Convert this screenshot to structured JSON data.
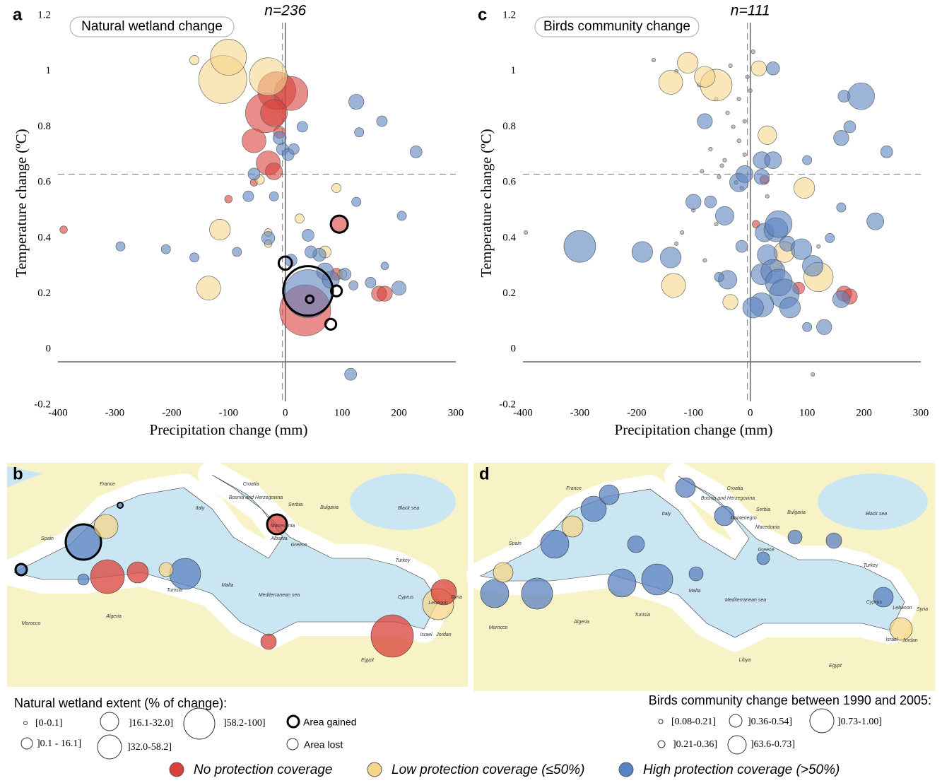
{
  "chart_data": [
    {
      "type": "scatter",
      "panel": "a",
      "title": "Natural wetland change",
      "annotation": "n=236",
      "xlabel": "Precipitation change (mm)",
      "ylabel": "Temperature change (ºC)",
      "xlim": [
        -400,
        300
      ],
      "xticks": [
        -400,
        -300,
        -200,
        -100,
        0,
        100,
        200,
        300
      ],
      "ylim": [
        -0.2,
        1.2
      ],
      "yticks": [
        -0.2,
        0,
        0.2,
        0.4,
        0.6,
        0.8,
        1,
        1.2
      ],
      "axis_lines": {
        "x": 0,
        "y": -0.045
      },
      "mean_lines": {
        "x": -5,
        "y": 0.63
      },
      "series": [
        {
          "name": "No protection coverage",
          "color": "#d9413a",
          "x": [
            -15,
            10,
            -35,
            -55,
            -30,
            -20,
            -20,
            35,
            165,
            175,
            95,
            -390,
            -55,
            -100,
            90,
            -10
          ],
          "values": [
            0.93,
            0.92,
            0.85,
            0.75,
            0.67,
            0.64,
            0.85,
            0.14,
            0.2,
            0.2,
            0.45,
            0.43,
            0.6,
            0.54,
            0.27,
            0.78
          ],
          "sizes": [
            50,
            40,
            55,
            20,
            20,
            10,
            25,
            90,
            8,
            8,
            8,
            2,
            2,
            2,
            5,
            5
          ]
        },
        {
          "name": "Low protection coverage (≤50%)",
          "color": "#f5d58a",
          "x": [
            -110,
            -30,
            -100,
            -135,
            -115,
            -160,
            -30,
            25,
            100,
            -45,
            90,
            -30,
            70
          ],
          "values": [
            0.97,
            0.98,
            1.05,
            0.22,
            0.43,
            1.04,
            0.42,
            0.47,
            0.27,
            0.61,
            0.58,
            0.38,
            0.35
          ],
          "sizes": [
            80,
            50,
            45,
            20,
            15,
            3,
            2,
            3,
            3,
            3,
            3,
            2,
            5
          ]
        },
        {
          "name": "High protection coverage (>50%)",
          "color": "#5b82c0",
          "x": [
            40,
            125,
            -5,
            5,
            15,
            -55,
            -30,
            40,
            60,
            70,
            80,
            105,
            120,
            150,
            200,
            230,
            205,
            175,
            -10,
            -65,
            -290,
            -210,
            -160,
            -85,
            115,
            130,
            170,
            125,
            10,
            -20,
            45,
            30
          ],
          "values": [
            0.2,
            0.89,
            0.72,
            0.7,
            0.72,
            0.63,
            0.4,
            0.41,
            0.34,
            0.28,
            0.25,
            0.27,
            0.23,
            0.24,
            0.22,
            0.71,
            0.48,
            0.3,
            0.76,
            0.55,
            0.37,
            0.36,
            0.33,
            0.35,
            -0.09,
            0.78,
            0.82,
            0.53,
            0.32,
            0.55,
            0.35,
            0.8
          ],
          "sizes": [
            80,
            8,
            5,
            5,
            4,
            5,
            6,
            5,
            6,
            10,
            10,
            5,
            3,
            4,
            7,
            5,
            3,
            2,
            6,
            4,
            3,
            3,
            3,
            3,
            5,
            3,
            4,
            3,
            5,
            3,
            5,
            4
          ]
        },
        {
          "name": "Area gained",
          "color": "#000000",
          "outline": true,
          "x": [
            40,
            95,
            0,
            90,
            80,
            43
          ],
          "values": [
            0.21,
            0.45,
            0.31,
            0.21,
            0.09,
            0.18
          ],
          "sizes": [
            85,
            10,
            6,
            4,
            4,
            2
          ]
        }
      ]
    },
    {
      "type": "scatter",
      "panel": "c",
      "title": "Birds community change",
      "annotation": "n=111",
      "xlabel": "Precipitation change (mm)",
      "ylabel": "Temperature change (ºC)",
      "xlim": [
        -400,
        300
      ],
      "xticks": [
        -400,
        -300,
        -200,
        -100,
        0,
        100,
        200,
        300
      ],
      "ylim": [
        -0.2,
        1.2
      ],
      "yticks": [
        -0.2,
        0,
        0.2,
        0.4,
        0.6,
        0.8,
        1,
        1.2
      ],
      "axis_lines": {
        "x": 0,
        "y": -0.045
      },
      "mean_lines": {
        "x": -5,
        "y": 0.63
      },
      "series": [
        {
          "color": "#9a9a9a",
          "x": [
            -170,
            -130,
            -90,
            -60,
            -40,
            -30,
            -20,
            -10,
            -5,
            5,
            -50,
            -70,
            -25,
            -15,
            -45,
            -35,
            -85,
            -120,
            -395,
            -20,
            -10,
            30,
            -130,
            -60,
            -80,
            120,
            110,
            -100,
            -55,
            0
          ],
          "values": [
            1.04,
            1.0,
            0.95,
            0.9,
            0.85,
            0.8,
            0.75,
            0.7,
            0.98,
            1.07,
            0.66,
            0.72,
            0.6,
            0.58,
            0.68,
            1.02,
            0.64,
            0.42,
            0.42,
            0.9,
            0.82,
            0.55,
            0.38,
            0.45,
            0.32,
            0.37,
            -0.09,
            0.5,
            0.62,
            0.93
          ],
          "sizes": [
            0.5,
            0.5,
            0.5,
            0.5,
            0.5,
            0.5,
            0.5,
            0.5,
            0.5,
            0.5,
            0.5,
            0.5,
            0.5,
            0.5,
            0.5,
            0.5,
            0.5,
            0.5,
            0.5,
            0.5,
            0.5,
            0.5,
            0.5,
            0.5,
            0.5,
            0.5,
            0.5,
            0.5,
            0.5,
            0.5
          ]
        },
        {
          "color": "#d9413a",
          "x": [
            165,
            175,
            10,
            85,
            25
          ],
          "values": [
            0.2,
            0.19,
            0.45,
            0.22,
            0.61
          ],
          "sizes": [
            8,
            8,
            2,
            5,
            3
          ]
        },
        {
          "color": "#f5d58a",
          "x": [
            -110,
            -140,
            -60,
            -80,
            15,
            30,
            95,
            -135,
            -35,
            120,
            60,
            45
          ],
          "values": [
            1.03,
            0.96,
            0.95,
            0.98,
            1.01,
            0.77,
            0.58,
            0.23,
            0.17,
            0.26,
            0.35,
            0.3
          ],
          "sizes": [
            15,
            20,
            35,
            15,
            8,
            12,
            15,
            20,
            8,
            30,
            15,
            5
          ]
        },
        {
          "color": "#5b82c0",
          "x": [
            40,
            -80,
            -300,
            -190,
            -140,
            -100,
            -70,
            -45,
            -20,
            -10,
            20,
            40,
            20,
            -15,
            -40,
            25,
            30,
            45,
            50,
            65,
            90,
            110,
            20,
            40,
            50,
            60,
            20,
            5,
            70,
            130,
            160,
            160,
            165,
            175,
            195,
            240,
            220,
            160,
            140,
            100,
            -55,
            100
          ],
          "values": [
            1.01,
            0.82,
            0.37,
            0.35,
            0.33,
            0.53,
            0.53,
            0.48,
            0.6,
            0.63,
            0.68,
            0.68,
            0.62,
            0.37,
            0.25,
            0.42,
            0.34,
            0.43,
            0.45,
            0.38,
            0.36,
            0.3,
            0.27,
            0.28,
            0.24,
            0.2,
            0.16,
            0.15,
            0.15,
            0.08,
            0.18,
            0.76,
            0.91,
            0.8,
            0.91,
            0.71,
            0.46,
            0.51,
            0.4,
            0.68,
            0.26,
            0.08
          ],
          "sizes": [
            6,
            8,
            35,
            15,
            15,
            8,
            5,
            12,
            12,
            10,
            10,
            10,
            8,
            5,
            12,
            12,
            14,
            20,
            25,
            8,
            15,
            15,
            15,
            20,
            25,
            30,
            20,
            15,
            15,
            8,
            10,
            8,
            5,
            5,
            25,
            5,
            10,
            3,
            3,
            3,
            3,
            3
          ]
        }
      ]
    }
  ],
  "maps": [
    {
      "panel": "b",
      "labels": [
        "France",
        "Croatia",
        "Bosnia and Herzegovina",
        "Serbia",
        "Bulgaria",
        "Black sea",
        "Italy",
        "Spain",
        "Macedonia",
        "Albania",
        "Greece",
        "Turkey",
        "Malta",
        "Mediterranean sea",
        "Cyprus",
        "Lebanon",
        "Syria",
        "Algeria",
        "Tunisia",
        "Morocco",
        "Israel",
        "Jordan",
        "Egypt"
      ]
    },
    {
      "panel": "d",
      "labels": [
        "France",
        "Croatia",
        "Bosnia and Herzegovina",
        "Serbia",
        "Bulgaria",
        "Black sea",
        "Italy",
        "Spain",
        "Macedonia",
        "Montenegro",
        "Greece",
        "Turkey",
        "Malta",
        "Mediterranean sea",
        "Cyprus",
        "Lebanon",
        "Syria",
        "Algeria",
        "Tunisia",
        "Morocco",
        "Israel",
        "Jordan",
        "Egypt",
        "Libya"
      ]
    }
  ],
  "legend": {
    "wetland_title": "Natural wetland extent (% of change):",
    "wetland_classes": [
      "[0-0.1]",
      "]16.1-32.0]",
      "]58.2-100]",
      "]0.1 - 16.1]",
      "]32.0-58.2]"
    ],
    "area_lost": "Area lost",
    "birds_title": "Birds community change between 1990 and 2005:",
    "birds_classes": [
      "[0.08-0.21]",
      "]0.36-0.54]",
      "]0.73-1.00]",
      "]0.21-0.36]",
      "]63.6-0.73]"
    ]
  }
}
